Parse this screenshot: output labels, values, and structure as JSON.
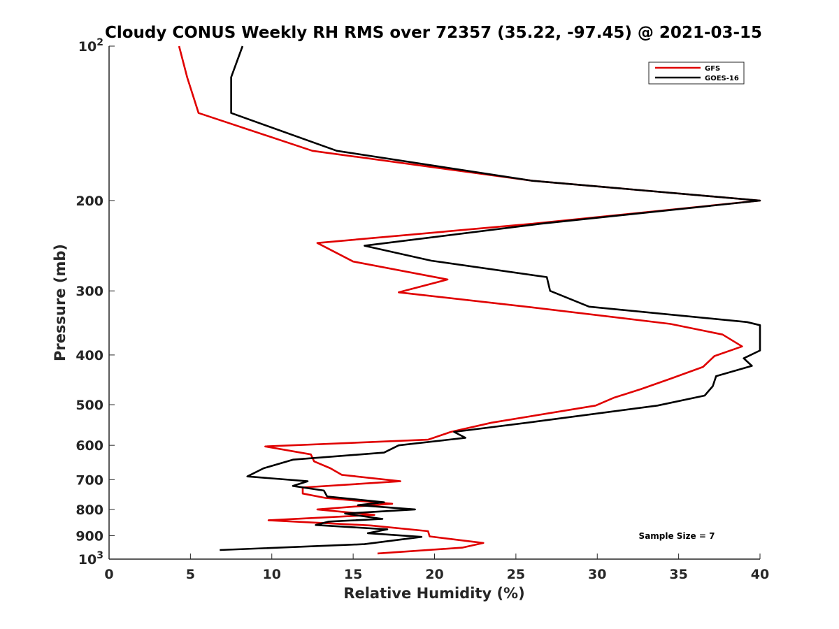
{
  "chart_data": {
    "type": "line",
    "title": "Cloudy CONUS Weekly RH RMS over 72357 (35.22, -97.45) @ 2021-03-15",
    "xlabel": "Relative Humidity (%)",
    "ylabel": "Pressure (mb)",
    "xlim": [
      0,
      40
    ],
    "ylim": [
      100,
      1000
    ],
    "y_scale": "log",
    "y_reversed": true,
    "x_ticks": [
      0,
      5,
      10,
      15,
      20,
      25,
      30,
      35,
      40
    ],
    "x_tick_labels": [
      "0",
      "5",
      "10",
      "15",
      "20",
      "25",
      "30",
      "35",
      "40"
    ],
    "y_ticks": [
      100,
      200,
      300,
      400,
      500,
      600,
      700,
      800,
      900,
      1000
    ],
    "y_tick_labels": [
      {
        "base": "10",
        "exp": "2"
      },
      {
        "base": "200",
        "exp": ""
      },
      {
        "base": "300",
        "exp": ""
      },
      {
        "base": "400",
        "exp": ""
      },
      {
        "base": "500",
        "exp": ""
      },
      {
        "base": "600",
        "exp": ""
      },
      {
        "base": "700",
        "exp": ""
      },
      {
        "base": "800",
        "exp": ""
      },
      {
        "base": "900",
        "exp": ""
      },
      {
        "base": "10",
        "exp": "3"
      }
    ],
    "legend_position": "top-right",
    "annotation": "Sample Size = 7",
    "series": [
      {
        "name": "GFS",
        "color": "#e00000",
        "points": [
          [
            4.3,
            100
          ],
          [
            4.8,
            115
          ],
          [
            5.5,
            135
          ],
          [
            12.5,
            160
          ],
          [
            26.0,
            183
          ],
          [
            40.0,
            200
          ],
          [
            26.0,
            222
          ],
          [
            12.8,
            242
          ],
          [
            15.0,
            263
          ],
          [
            20.8,
            285
          ],
          [
            17.8,
            302
          ],
          [
            26.0,
            323
          ],
          [
            34.5,
            348
          ],
          [
            37.7,
            365
          ],
          [
            38.9,
            385
          ],
          [
            37.2,
            402
          ],
          [
            36.5,
            422
          ],
          [
            34.5,
            445
          ],
          [
            32.7,
            466
          ],
          [
            31.0,
            485
          ],
          [
            29.9,
            502
          ],
          [
            23.5,
            542
          ],
          [
            21.0,
            565
          ],
          [
            19.6,
            585
          ],
          [
            9.6,
            603
          ],
          [
            12.4,
            625
          ],
          [
            12.6,
            645
          ],
          [
            13.6,
            665
          ],
          [
            14.3,
            685
          ],
          [
            17.9,
            705
          ],
          [
            11.9,
            725
          ],
          [
            11.9,
            745
          ],
          [
            13.3,
            760
          ],
          [
            17.4,
            780
          ],
          [
            12.8,
            800
          ],
          [
            16.3,
            820
          ],
          [
            9.8,
            840
          ],
          [
            16.1,
            860
          ],
          [
            19.6,
            882
          ],
          [
            19.7,
            903
          ],
          [
            23.0,
            930
          ],
          [
            21.7,
            950
          ],
          [
            16.5,
            975
          ]
        ]
      },
      {
        "name": "GOES-16",
        "color": "#000000",
        "points": [
          [
            8.2,
            100
          ],
          [
            7.5,
            115
          ],
          [
            7.5,
            135
          ],
          [
            14.0,
            160
          ],
          [
            26.0,
            183
          ],
          [
            40.0,
            200
          ],
          [
            26.5,
            222
          ],
          [
            15.7,
            245
          ],
          [
            19.8,
            262
          ],
          [
            26.9,
            282
          ],
          [
            27.1,
            300
          ],
          [
            29.5,
            322
          ],
          [
            39.2,
            345
          ],
          [
            40.0,
            350
          ],
          [
            40.0,
            392
          ],
          [
            39.0,
            406
          ],
          [
            39.5,
            420
          ],
          [
            37.3,
            440
          ],
          [
            37.1,
            460
          ],
          [
            36.6,
            480
          ],
          [
            33.7,
            502
          ],
          [
            26.1,
            540
          ],
          [
            21.2,
            565
          ],
          [
            21.9,
            580
          ],
          [
            17.8,
            600
          ],
          [
            16.9,
            620
          ],
          [
            11.3,
            640
          ],
          [
            9.5,
            665
          ],
          [
            8.5,
            690
          ],
          [
            12.2,
            705
          ],
          [
            11.3,
            720
          ],
          [
            13.2,
            735
          ],
          [
            13.4,
            755
          ],
          [
            16.9,
            775
          ],
          [
            15.3,
            785
          ],
          [
            18.8,
            800
          ],
          [
            14.5,
            815
          ],
          [
            16.8,
            835
          ],
          [
            13.5,
            845
          ],
          [
            12.7,
            858
          ],
          [
            17.1,
            875
          ],
          [
            15.9,
            890
          ],
          [
            19.2,
            905
          ],
          [
            15.7,
            935
          ],
          [
            6.8,
            960
          ]
        ]
      }
    ]
  }
}
